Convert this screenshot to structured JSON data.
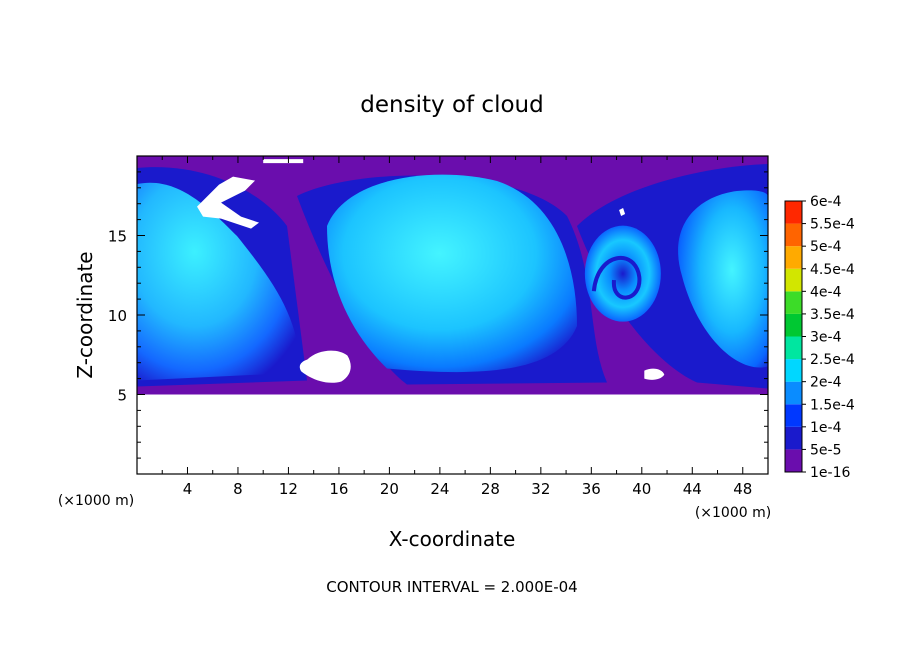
{
  "chart_data": {
    "type": "heatmap",
    "title": "density of cloud",
    "xlabel": "X-coordinate",
    "ylabel": "Z-coordinate",
    "x_unit": "(×1000 m)",
    "x_unit_right": "(×1000 m)",
    "xlim": [
      0,
      50
    ],
    "ylim": [
      0,
      20
    ],
    "x_ticks": [
      4,
      8,
      12,
      16,
      20,
      24,
      28,
      32,
      36,
      40,
      44,
      48
    ],
    "y_ticks": [
      5,
      10,
      15
    ],
    "footer": "CONTOUR INTERVAL = 2.000E-04",
    "colorbar": {
      "levels": [
        "1e-16",
        "5e-5",
        "1e-4",
        "1.5e-4",
        "2e-4",
        "2.5e-4",
        "3e-4",
        "3.5e-4",
        "4e-4",
        "4.5e-4",
        "5e-4",
        "5.5e-4",
        "6e-4"
      ],
      "colors": [
        "#6a0dad",
        "#1a1acc",
        "#0038ff",
        "#0a8cff",
        "#00d7ff",
        "#00e6a0",
        "#00c832",
        "#3cdc28",
        "#d2e600",
        "#ffaa00",
        "#ff6400",
        "#ff2800",
        "#ff8c8c"
      ]
    },
    "cloud_base_z": 5,
    "cloud_top_z": 20
  }
}
